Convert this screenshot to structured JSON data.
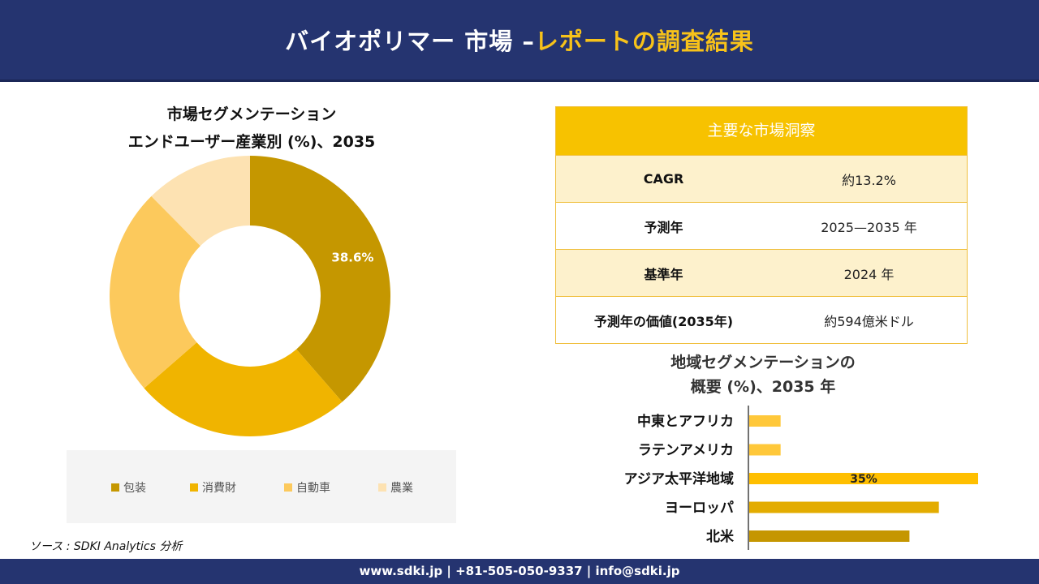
{
  "header": {
    "title_main": "バイオポリマー 市場 –",
    "title_accent": "レポートの調査結果"
  },
  "colors": {
    "navy": "#253470",
    "accent": "#f7c21a"
  },
  "donut": {
    "title_line1": "市場セグメンテーション",
    "title_line2": "エンドユーザー産業別 (%)、2035年"
  },
  "key_insights": {
    "title": "主要な市場洞察",
    "rows": [
      {
        "label": "CAGR",
        "value": "約13.2%"
      },
      {
        "label": "予測年",
        "value": "2025—2035 年"
      },
      {
        "label": "基準年",
        "value": "2024 年"
      },
      {
        "label": "予測年の価値(2035年)",
        "value": "約594億米ドル"
      }
    ]
  },
  "region": {
    "title_line1": "地域セグメンテーションの",
    "title_line2": "概要 (%)、2035 年"
  },
  "source": "ソース : SDKI Analytics 分析",
  "footer": {
    "contact": "www.sdki.jp | +81-505-050-9337 | info@sdki.jp"
  },
  "chart_data": [
    {
      "type": "pie",
      "title": "市場セグメンテーション エンドユーザー産業別 (%)、2035年",
      "categories": [
        "包装",
        "消費財",
        "自動車",
        "農業"
      ],
      "values": [
        38.6,
        25.0,
        24.0,
        12.4
      ],
      "colors": [
        "#c59700",
        "#f0b400",
        "#fcc95c",
        "#fde2b2"
      ],
      "data_labels": [
        "38.6%",
        "",
        "",
        ""
      ],
      "legend_position": "bottom"
    },
    {
      "type": "bar",
      "orientation": "horizontal",
      "title": "地域セグメンテーションの概要 (%)、2035 年",
      "categories": [
        "中東とアフリカ",
        "ラテンアメリカ",
        "アジア太平洋地域",
        "ヨーロッパ",
        "北米"
      ],
      "values": [
        4.8,
        4.8,
        35,
        29,
        24.5
      ],
      "colors": [
        "#ffc83a",
        "#ffc83a",
        "#ffbf00",
        "#e3ac00",
        "#c59600"
      ],
      "data_labels": [
        "",
        "",
        "35%",
        "",
        ""
      ],
      "unit": "%"
    }
  ]
}
